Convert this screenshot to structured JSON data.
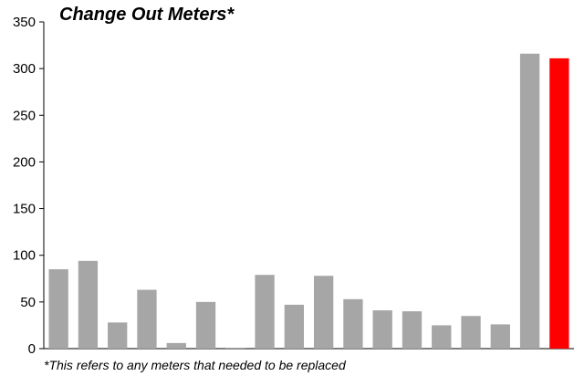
{
  "chart_data": {
    "type": "bar",
    "title": "Change Out Meters*",
    "footnote": "*This refers to any meters that needed to be replaced",
    "xlabel": "",
    "ylabel": "",
    "ylim": [
      0,
      350
    ],
    "yticks": [
      0,
      50,
      100,
      150,
      200,
      250,
      300,
      350
    ],
    "grid": false,
    "legend": "none",
    "values": [
      85,
      94,
      28,
      63,
      6,
      50,
      1,
      79,
      47,
      78,
      53,
      41,
      40,
      25,
      35,
      26,
      316,
      311
    ],
    "colors": {
      "default_bar": "#a6a6a6",
      "highlight_bar": "#ff0000",
      "axis": "#000000"
    },
    "highlight_index": 17
  }
}
